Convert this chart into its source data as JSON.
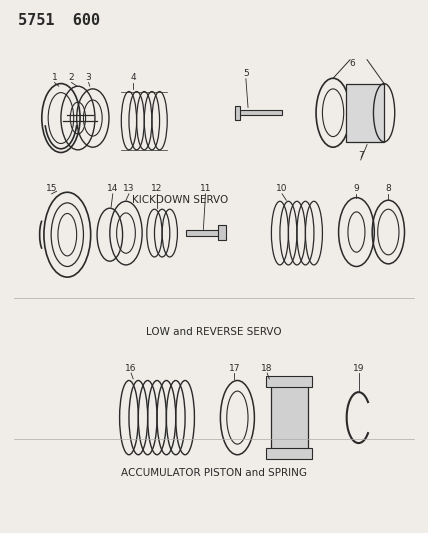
{
  "title_code": "5751  600",
  "bg_color": "#f0ede8",
  "line_color": "#2a2a2a",
  "section1_label": "KICKDOWN SERVO",
  "section2_label": "LOW and REVERSE SERVO",
  "section3_label": "ACCUMULATOR PISTON and SPRING"
}
